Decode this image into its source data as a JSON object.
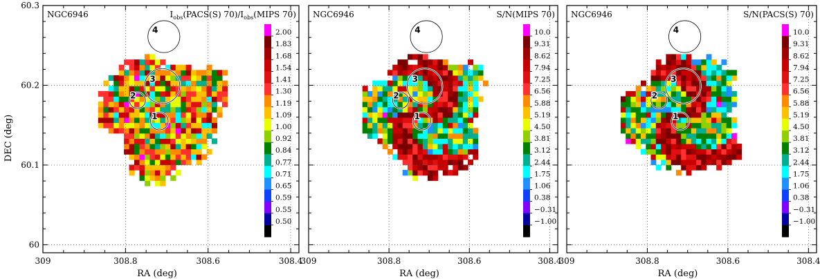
{
  "figure": {
    "x_axis_label": "RA (deg)",
    "y_axis_label": "DEC (deg)"
  },
  "chart_data": [
    {
      "type": "heatmap",
      "object": "NGC6946",
      "title_parts": {
        "a": "I",
        "a_sub": "obs",
        "b": "(PACS(S) 70)/I",
        "b_sub": "obs",
        "c": "(MIPS 70)"
      },
      "xlabel": "RA (deg)",
      "ylabel": "DEC (deg)",
      "xlim": [
        309.0,
        308.38
      ],
      "ylim": [
        59.99,
        60.3
      ],
      "x_ticks": [
        "309",
        "308.8",
        "308.6",
        "308.4"
      ],
      "y_ticks": [
        "60",
        "60.1",
        "60.2",
        "60.3"
      ],
      "grid": true,
      "colorbar": {
        "labels": [
          "2.00",
          "1.83",
          "1.68",
          "1.54",
          "1.41",
          "1.30",
          "1.19",
          "1.09",
          "1.00",
          "0.92",
          "0.84",
          "0.77",
          "0.71",
          "0.65",
          "0.59",
          "0.55",
          "0.50"
        ],
        "colors": [
          "#ff00ff",
          "#7a0000",
          "#a00000",
          "#c80000",
          "#e01010",
          "#ff3030",
          "#ff8c00",
          "#ffc000",
          "#e8ff00",
          "#90d000",
          "#008000",
          "#00b090",
          "#00ffff",
          "#2090ff",
          "#1040ff",
          "#8000ff",
          "#0000a0",
          "#000000"
        ]
      },
      "regions": [
        {
          "id": "1",
          "ra": 308.718,
          "dec": 60.155,
          "r": 0.011
        },
        {
          "id": "2",
          "ra": 308.771,
          "dec": 60.181,
          "r": 0.01
        },
        {
          "id": "3",
          "ra": 308.711,
          "dec": 60.199,
          "r": 0.022
        },
        {
          "id": "4",
          "ra": 308.707,
          "dec": 60.261,
          "r": 0.02
        }
      ]
    },
    {
      "type": "heatmap",
      "object": "NGC6946",
      "title": "S/N(MIPS 70)",
      "xlabel": "RA (deg)",
      "ylabel": "DEC (deg)",
      "xlim": [
        309.0,
        308.38
      ],
      "ylim": [
        59.99,
        60.3
      ],
      "x_ticks": [
        "309",
        "308.8",
        "308.6",
        "308.4"
      ],
      "y_ticks": [
        "60",
        "60.1",
        "60.2",
        "60.3"
      ],
      "grid": true,
      "colorbar": {
        "labels": [
          "10.0",
          "9.31",
          "8.62",
          "7.94",
          "7.25",
          "6.56",
          "5.88",
          "5.19",
          "4.50",
          "3.81",
          "3.12",
          "2.44",
          "1.75",
          "1.06",
          "0.38",
          "−0.31",
          "−1.00"
        ],
        "colors": [
          "#ff00ff",
          "#7a0000",
          "#a00000",
          "#c80000",
          "#e01010",
          "#ff3030",
          "#ff8c00",
          "#ffc000",
          "#e8ff00",
          "#90d000",
          "#008000",
          "#00b090",
          "#00ffff",
          "#2090ff",
          "#1040ff",
          "#8000ff",
          "#0000a0",
          "#000000"
        ]
      },
      "regions": [
        {
          "id": "1",
          "ra": 308.718,
          "dec": 60.155,
          "r": 0.011
        },
        {
          "id": "2",
          "ra": 308.771,
          "dec": 60.181,
          "r": 0.01
        },
        {
          "id": "3",
          "ra": 308.711,
          "dec": 60.199,
          "r": 0.022
        },
        {
          "id": "4",
          "ra": 308.707,
          "dec": 60.261,
          "r": 0.02
        }
      ]
    },
    {
      "type": "heatmap",
      "object": "NGC6946",
      "title": "S/N(PACS(S) 70)",
      "xlabel": "RA (deg)",
      "ylabel": "DEC (deg)",
      "xlim": [
        309.0,
        308.38
      ],
      "ylim": [
        59.99,
        60.3
      ],
      "x_ticks": [
        "309",
        "308.8",
        "308.6",
        "308.4"
      ],
      "y_ticks": [
        "60",
        "60.1",
        "60.2",
        "60.3"
      ],
      "grid": true,
      "colorbar": {
        "labels": [
          "10.0",
          "9.31",
          "8.62",
          "7.94",
          "7.25",
          "6.56",
          "5.88",
          "5.19",
          "4.50",
          "3.81",
          "3.12",
          "2.44",
          "1.75",
          "1.06",
          "0.38",
          "−0.31",
          "−1.00"
        ],
        "colors": [
          "#ff00ff",
          "#7a0000",
          "#a00000",
          "#c80000",
          "#e01010",
          "#ff3030",
          "#ff8c00",
          "#ffc000",
          "#e8ff00",
          "#90d000",
          "#008000",
          "#00b090",
          "#00ffff",
          "#2090ff",
          "#1040ff",
          "#8000ff",
          "#0000a0",
          "#000000"
        ]
      },
      "regions": [
        {
          "id": "1",
          "ra": 308.718,
          "dec": 60.155,
          "r": 0.011
        },
        {
          "id": "2",
          "ra": 308.771,
          "dec": 60.181,
          "r": 0.01
        },
        {
          "id": "3",
          "ra": 308.711,
          "dec": 60.199,
          "r": 0.022
        },
        {
          "id": "4",
          "ra": 308.707,
          "dec": 60.261,
          "r": 0.02
        }
      ]
    }
  ]
}
